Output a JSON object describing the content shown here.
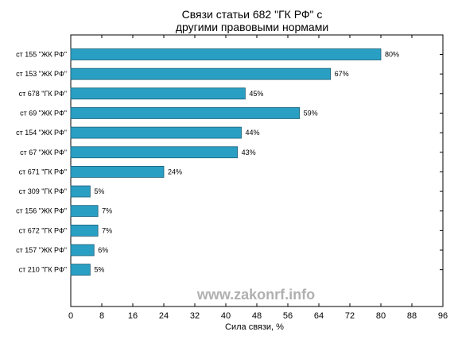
{
  "chart_data": {
    "type": "bar",
    "orientation": "horizontal",
    "title": "Связи статьи 682 \"ГК РФ\" с другими правовыми нормами",
    "title_lines": [
      "Связи статьи 682 \"ГК РФ\" с",
      "другими правовыми нормами"
    ],
    "xlabel": "Сила связи, %",
    "ylabel": "",
    "xlim": [
      0,
      96
    ],
    "xticks": [
      0,
      8,
      16,
      24,
      32,
      40,
      48,
      56,
      64,
      72,
      80,
      88,
      96
    ],
    "categories": [
      "ст 155 \"ЖК РФ\"",
      "ст 153 \"ЖК РФ\"",
      "ст 678 \"ГК РФ\"",
      "ст 69 \"ЖК РФ\"",
      "ст 154 \"ЖК РФ\"",
      "ст 67 \"ЖК РФ\"",
      "ст 671 \"ГК РФ\"",
      "ст 309 \"ГК РФ\"",
      "ст 156 \"ЖК РФ\"",
      "ст 672 \"ГК РФ\"",
      "ст 157 \"ЖК РФ\"",
      "ст 210 \"ГК РФ\""
    ],
    "values": [
      80,
      67,
      45,
      59,
      44,
      43,
      24,
      5,
      7,
      7,
      6,
      5
    ],
    "value_labels": [
      "80%",
      "67%",
      "45%",
      "59%",
      "44%",
      "43%",
      "24%",
      "5%",
      "7%",
      "7%",
      "6%",
      "5%"
    ],
    "bar_color": "#2a9fc4",
    "bar_edge_color": "#1a5f77",
    "grid": false,
    "legend": "none",
    "watermark": "www.zakonrf.info"
  }
}
